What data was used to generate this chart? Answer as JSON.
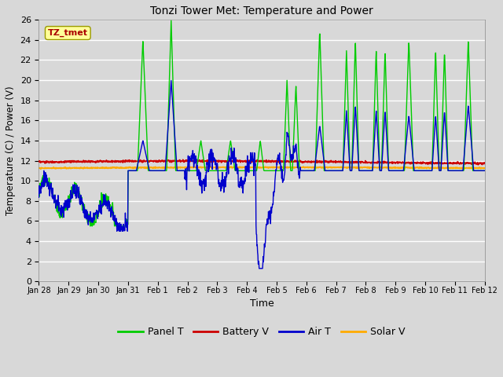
{
  "title": "Tonzi Tower Met: Temperature and Power",
  "xlabel": "Time",
  "ylabel": "Temperature (C) / Power (V)",
  "ylim": [
    0,
    26
  ],
  "yticks": [
    0,
    2,
    4,
    6,
    8,
    10,
    12,
    14,
    16,
    18,
    20,
    22,
    24,
    26
  ],
  "background_color": "#d8d8d8",
  "plot_bg_color": "#d8d8d8",
  "legend_labels": [
    "Panel T",
    "Battery V",
    "Air T",
    "Solar V"
  ],
  "legend_colors": [
    "#00cc00",
    "#cc0000",
    "#0000cc",
    "#ffaa00"
  ],
  "annotation_text": "TZ_tmet",
  "annotation_color": "#aa0000",
  "annotation_bg": "#ffff99",
  "xtick_labels": [
    "Jan 28",
    "Jan 29",
    "Jan 30",
    "Jan 31",
    "Feb 1",
    "Feb 2",
    "Feb 3",
    "Feb 4",
    "Feb 5",
    "Feb 6",
    "Feb 7",
    "Feb 8",
    "Feb 9",
    "Feb 10",
    "Feb 11",
    "Feb 12"
  ],
  "panel_t_color": "#00cc00",
  "battery_v_color": "#cc0000",
  "air_t_color": "#0000cc",
  "solar_v_color": "#ffaa00",
  "line_width": 1.0,
  "fig_width": 6.4,
  "fig_height": 4.8,
  "dpi": 100
}
